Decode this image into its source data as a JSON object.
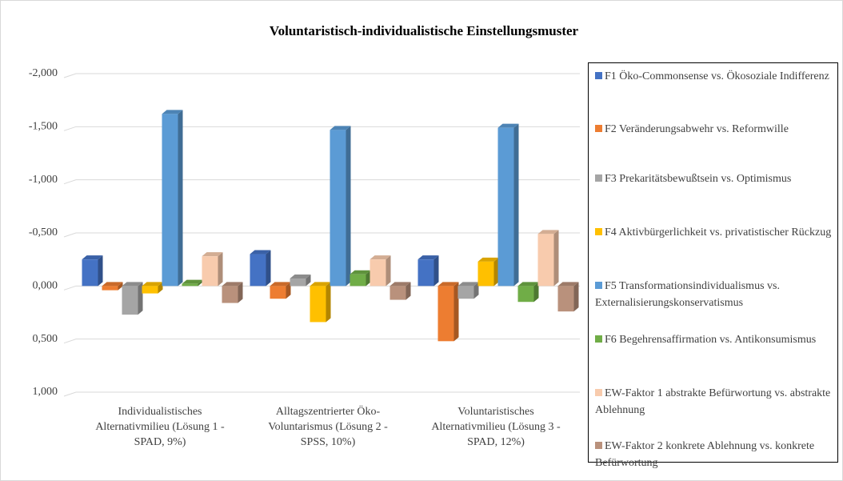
{
  "chart_data": {
    "type": "bar",
    "title": "Voluntaristisch-individualistische Einstellungsmuster",
    "categories": [
      "Individualistisches Alternativmilieu (Lösung 1 - SPAD, 9%)",
      "Alltagszentrierter Öko-Voluntarismus (Lösung 2 - SPSS, 10%)",
      "Voluntaristisches Alternativmilieu (Lösung 3 - SPAD, 12%)"
    ],
    "series": [
      {
        "name": "F1 Öko-Commonsense vs. Ökosoziale Indifferenz",
        "color": "#4472c4",
        "values": [
          -0.25,
          -0.3,
          -0.25
        ]
      },
      {
        "name": "F2 Veränderungsabwehr vs. Reformwille",
        "color": "#ed7d31",
        "values": [
          0.04,
          0.12,
          0.52
        ]
      },
      {
        "name": "F3 Prekaritätsbewußtsein vs. Optimismus",
        "color": "#a5a5a5",
        "values": [
          0.27,
          -0.07,
          0.12
        ]
      },
      {
        "name": "F4 Aktivbürgerlichkeit vs. privatistischer Rückzug",
        "color": "#ffc000",
        "values": [
          0.07,
          0.34,
          -0.23
        ]
      },
      {
        "name": "F5 Transformationsindividualismus vs. Externalisierungskonservatismus",
        "color": "#5b9bd5",
        "values": [
          -1.62,
          -1.47,
          -1.49
        ]
      },
      {
        "name": "F6 Begehrensaffirmation vs. Antikonsumismus",
        "color": "#70ad47",
        "values": [
          -0.02,
          -0.11,
          0.15
        ]
      },
      {
        "name": "EW-Faktor 1 abstrakte Befürwortung vs. abstrakte Ablehnung",
        "color": "#f8cbad",
        "values": [
          -0.28,
          -0.25,
          -0.49
        ]
      },
      {
        "name": "EW-Faktor 2 konkrete Ablehnung vs. konkrete Befürwortung",
        "color": "#b9917c",
        "values": [
          0.16,
          0.13,
          0.24
        ]
      }
    ],
    "ylim": [
      -2,
      1
    ],
    "y_inverted": true,
    "yticks": [
      {
        "value": -2,
        "label": "-2,000"
      },
      {
        "value": -1.5,
        "label": "-1,500"
      },
      {
        "value": -1,
        "label": "-1,000"
      },
      {
        "value": -0.5,
        "label": "-0,500"
      },
      {
        "value": 0,
        "label": "0,000"
      },
      {
        "value": 0.5,
        "label": "0,500"
      },
      {
        "value": 1,
        "label": "1,000"
      }
    ],
    "grid": true,
    "legend": "right"
  }
}
